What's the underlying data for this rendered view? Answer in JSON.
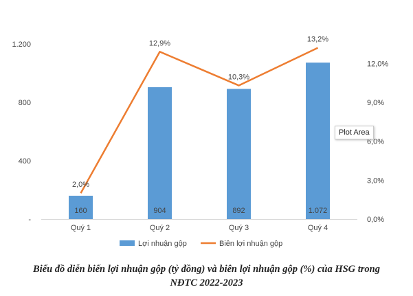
{
  "chart_data": {
    "type": "bar",
    "categories": [
      "Quý 1",
      "Quý 2",
      "Quý 3",
      "Quý 4"
    ],
    "series": [
      {
        "name": "Lợi nhuận gộp",
        "kind": "bar",
        "axis": "left",
        "color": "#5b9bd5",
        "values": [
          160,
          904,
          892,
          1072
        ],
        "labels": [
          "160",
          "904",
          "892",
          "1.072"
        ]
      },
      {
        "name": "Biên lợi nhuận gộp",
        "kind": "line",
        "axis": "right",
        "color": "#ed7d31",
        "values": [
          2.0,
          12.9,
          10.3,
          13.2
        ],
        "labels": [
          "2,0%",
          "12,9%",
          "10,3%",
          "13,2%"
        ]
      }
    ],
    "y_left": {
      "ylim": [
        0,
        1200
      ],
      "ticks": [
        0,
        400,
        800,
        1200
      ],
      "tick_labels": [
        "-",
        "400",
        "800",
        "1.200"
      ]
    },
    "y_right": {
      "ylim": [
        0,
        13.5
      ],
      "ticks": [
        0,
        3,
        6,
        9,
        12
      ],
      "tick_labels": [
        "0,0%",
        "3,0%",
        "6,0%",
        "9,0%",
        "12,0%"
      ]
    },
    "legend_position": "bottom",
    "grid": false
  },
  "caption": {
    "line1": "Biểu đồ diễn biến lợi nhuận gộp (tỷ đồng) và biên lợi nhuận gộp (%) của HSG trong",
    "line2": "NĐTC 2022-2023"
  },
  "tooltip": "Plot Area"
}
